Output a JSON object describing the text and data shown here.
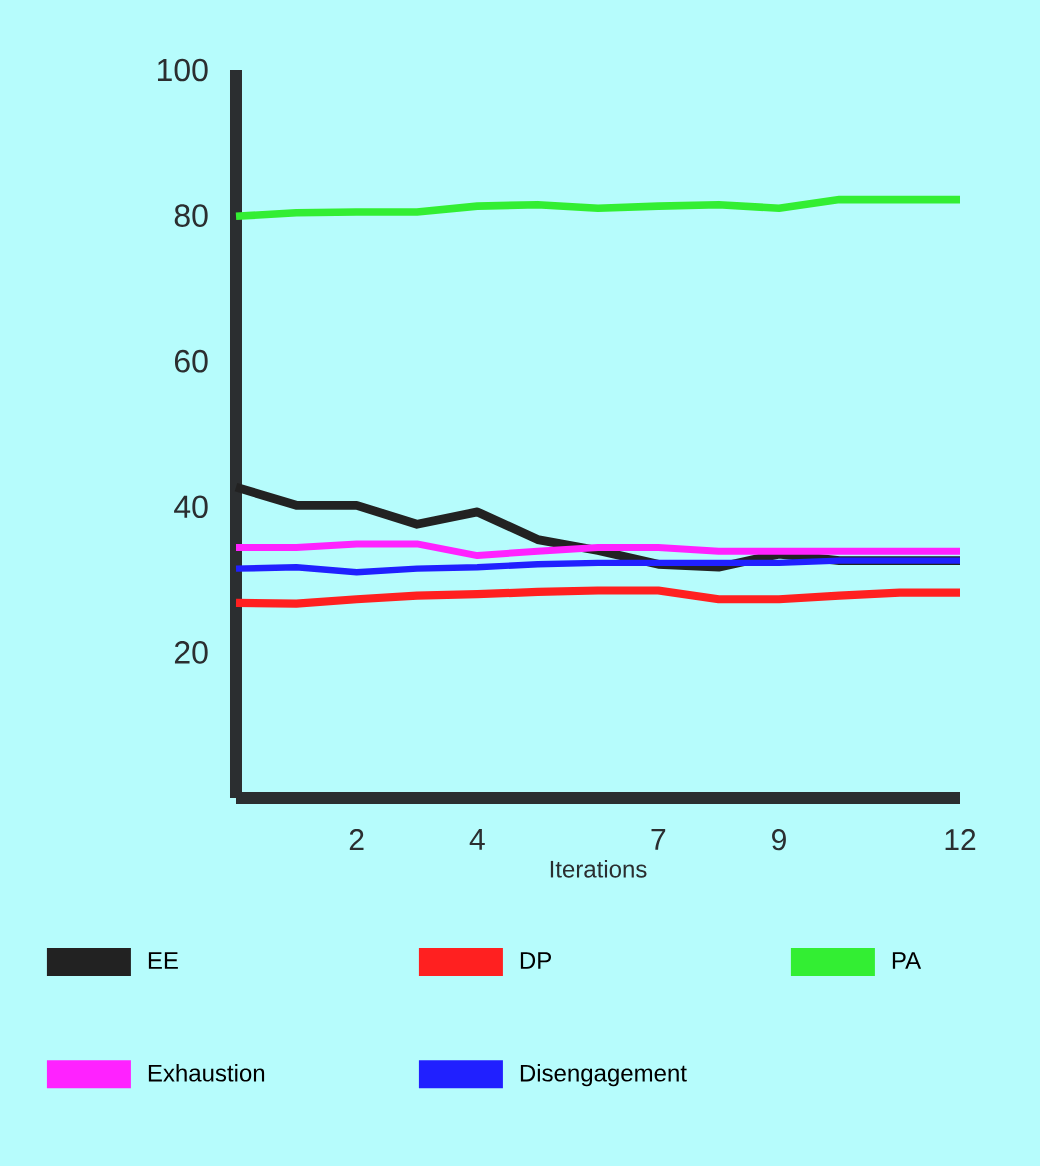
{
  "chart_data": {
    "type": "line",
    "xlabel": "Iterations",
    "x": [
      0,
      1,
      2,
      3,
      4,
      5,
      6,
      7,
      8,
      9,
      10,
      11,
      12
    ],
    "xlim": [
      0,
      12
    ],
    "xticks": [
      2,
      4,
      7,
      9,
      12
    ],
    "ylim": [
      0,
      100
    ],
    "yticks": [
      20,
      40,
      60,
      80,
      100
    ],
    "grid": false,
    "legend": "bottom",
    "marker": "none",
    "line_style": "solid",
    "series": [
      {
        "name": "EE",
        "color": "#222222",
        "values": [
          42.7,
          40.2,
          40.2,
          37.6,
          39.3,
          35.5,
          34.0,
          32.1,
          31.7,
          33.5,
          32.6,
          32.6,
          32.6
        ]
      },
      {
        "name": "DP",
        "color": "#ff2020",
        "values": [
          26.8,
          26.7,
          27.3,
          27.8,
          28.0,
          28.3,
          28.5,
          28.5,
          27.3,
          27.3,
          27.8,
          28.2,
          28.2
        ]
      },
      {
        "name": "PA",
        "color": "#33ee33",
        "values": [
          79.9,
          80.4,
          80.5,
          80.5,
          81.3,
          81.5,
          81.0,
          81.3,
          81.5,
          81.0,
          82.2,
          82.2,
          82.2
        ]
      },
      {
        "name": "Exhaustion",
        "color": "#ff22ff",
        "values": [
          34.4,
          34.4,
          34.9,
          34.9,
          33.3,
          33.9,
          34.4,
          34.4,
          33.9,
          33.9,
          33.9,
          33.9,
          33.9
        ]
      },
      {
        "name": "Disengagement",
        "color": "#2020ff",
        "values": [
          31.5,
          31.7,
          31.0,
          31.5,
          31.7,
          32.1,
          32.3,
          32.3,
          32.3,
          32.3,
          32.6,
          32.6,
          32.6
        ]
      }
    ]
  }
}
